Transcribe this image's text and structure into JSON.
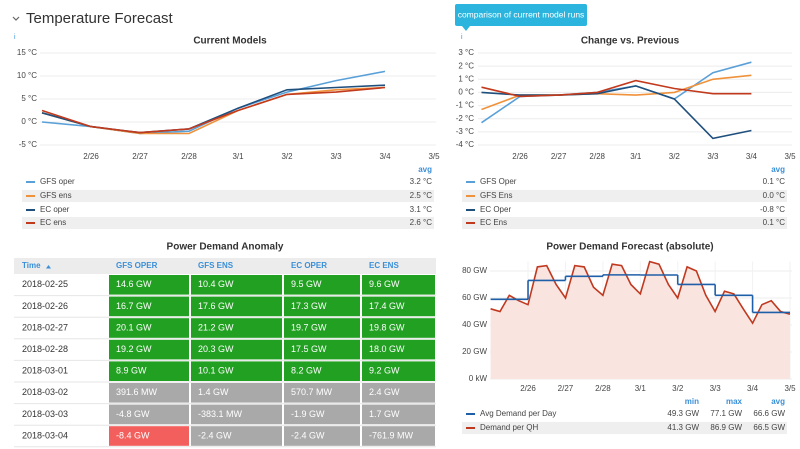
{
  "header": {
    "title": "Temperature Forecast",
    "tooltip": "comparison of current model runs"
  },
  "chart_data": [
    {
      "type": "line",
      "title": "Current Models",
      "categories": [
        null,
        "2/26",
        "2/27",
        "2/28",
        "3/1",
        "3/2",
        "3/3",
        "3/4",
        "3/5"
      ],
      "series": [
        {
          "name": "GFS oper",
          "color": "#5aa0d8",
          "values": [
            0,
            -1,
            -2.5,
            -2,
            3,
            6.5,
            9,
            11,
            null
          ],
          "legend_values": [
            "3.2 °C"
          ]
        },
        {
          "name": "GFS ens",
          "color": "#f0923b",
          "values": [
            2,
            -1,
            -2.5,
            -2.5,
            2.5,
            6,
            7,
            7.5,
            null
          ],
          "legend_values": [
            "2.5 °C"
          ]
        },
        {
          "name": "EC oper",
          "color": "#1f4f7d",
          "values": [
            2,
            -1,
            -2.3,
            -1.5,
            3,
            7,
            7.5,
            8,
            null
          ],
          "legend_values": [
            "3.1 °C"
          ]
        },
        {
          "name": "EC ens",
          "color": "#c23a1e",
          "values": [
            2.5,
            -1,
            -2.3,
            -1.5,
            2.5,
            6,
            6.5,
            7.5,
            null
          ],
          "legend_values": [
            "2.6 °C"
          ]
        }
      ],
      "legend_columns": [
        "avg"
      ],
      "ylim": [
        -5,
        15
      ],
      "yticks": [
        {
          "value": 15,
          "label": "15 °C"
        },
        {
          "value": 10,
          "label": "10 °C"
        },
        {
          "value": 5,
          "label": "5 °C"
        },
        {
          "value": 0,
          "label": "0 °C"
        },
        {
          "value": -5,
          "label": "-5 °C"
        }
      ],
      "grid": true
    },
    {
      "type": "line",
      "title": "Change vs. Previous",
      "categories": [
        null,
        "2/26",
        "2/27",
        "2/28",
        "3/1",
        "3/2",
        "3/3",
        "3/4",
        "3/5"
      ],
      "series": [
        {
          "name": "GFS Oper",
          "color": "#5aa0d8",
          "values": [
            -2.3,
            -0.3,
            -0.2,
            0,
            0.5,
            -0.5,
            1.5,
            2.3,
            null
          ],
          "legend_values": [
            "0.1 °C"
          ]
        },
        {
          "name": "GFS Ens",
          "color": "#f0923b",
          "values": [
            -1.3,
            -0.2,
            -0.2,
            -0.1,
            -0.2,
            0,
            1,
            1.3,
            null
          ],
          "legend_values": [
            "0.0 °C"
          ]
        },
        {
          "name": "EC Oper",
          "color": "#1f4f7d",
          "values": [
            0,
            -0.2,
            -0.2,
            -0.1,
            0.5,
            -0.5,
            -3.5,
            -2.9,
            null
          ],
          "legend_values": [
            "-0.8 °C"
          ]
        },
        {
          "name": "EC Ens",
          "color": "#c23a1e",
          "values": [
            0.4,
            -0.3,
            -0.2,
            0,
            0.9,
            0.3,
            -0.1,
            -0.1,
            null
          ],
          "legend_values": [
            "0.1 °C"
          ]
        }
      ],
      "legend_columns": [
        "avg"
      ],
      "ylim": [
        -4,
        3
      ],
      "yticks": [
        {
          "value": 3,
          "label": "3 °C"
        },
        {
          "value": 2,
          "label": "2 °C"
        },
        {
          "value": 1,
          "label": "1 °C"
        },
        {
          "value": 0,
          "label": "0 °C"
        },
        {
          "value": -1,
          "label": "-1 °C"
        },
        {
          "value": -2,
          "label": "-2 °C"
        },
        {
          "value": -3,
          "label": "-3 °C"
        },
        {
          "value": -4,
          "label": "-4 °C"
        }
      ],
      "grid": true
    },
    {
      "type": "line",
      "title": "Power Demand Forecast (absolute)",
      "series": [
        {
          "name": "Avg Demand per Day",
          "color": "#1f5fa8",
          "step": true,
          "x": [
            0,
            1,
            2,
            3,
            4,
            5,
            6,
            7
          ],
          "values": [
            59,
            73,
            76,
            77.1,
            77,
            70,
            62,
            49.3
          ],
          "legend_values": [
            "49.3 GW",
            "77.1 GW",
            "66.6 GW"
          ]
        },
        {
          "name": "Demand per QH",
          "color": "#c0391f",
          "fill": "#f9e4e0",
          "x": [
            0,
            0.25,
            0.5,
            0.75,
            1,
            1.25,
            1.5,
            1.75,
            2,
            2.25,
            2.5,
            2.75,
            3,
            3.25,
            3.5,
            3.75,
            4,
            4.25,
            4.5,
            4.75,
            5,
            5.25,
            5.5,
            5.75,
            6,
            6.25,
            6.5,
            6.75,
            7,
            7.25,
            7.5,
            7.75,
            8
          ],
          "values": [
            52,
            50,
            62,
            58,
            55,
            83,
            84,
            70,
            60,
            84,
            83,
            68,
            62,
            85,
            84,
            70,
            63,
            86.9,
            85,
            70,
            60,
            83,
            80,
            62,
            50,
            65,
            63,
            52,
            41.3,
            55,
            58,
            50,
            48
          ],
          "legend_values": [
            "41.3 GW",
            "86.9 GW",
            "66.5 GW"
          ]
        }
      ],
      "legend_columns": [
        "min",
        "max",
        "avg"
      ],
      "xlim": [
        0,
        8
      ],
      "xticks": [
        {
          "value": 1,
          "label": "2/26"
        },
        {
          "value": 2,
          "label": "2/27"
        },
        {
          "value": 3,
          "label": "2/28"
        },
        {
          "value": 4,
          "label": "3/1"
        },
        {
          "value": 5,
          "label": "3/2"
        },
        {
          "value": 6,
          "label": "3/3"
        },
        {
          "value": 7,
          "label": "3/4"
        },
        {
          "value": 8,
          "label": "3/5"
        }
      ],
      "ylim": [
        0,
        87
      ],
      "yticks": [
        {
          "value": 0,
          "label": "0 kW"
        },
        {
          "value": 20,
          "label": "20 GW"
        },
        {
          "value": 40,
          "label": "40 GW"
        },
        {
          "value": 60,
          "label": "60 GW"
        },
        {
          "value": 80,
          "label": "80 GW"
        }
      ],
      "grid": true
    }
  ],
  "table": {
    "title": "Power Demand Anomaly",
    "columns": [
      "Time",
      "GFS OPER",
      "GFS ENS",
      "EC OPER",
      "EC ENS"
    ],
    "rows": [
      [
        "2018-02-25",
        "14.6 GW",
        "10.4 GW",
        "9.5 GW",
        "9.6 GW"
      ],
      [
        "2018-02-26",
        "16.7 GW",
        "17.6 GW",
        "17.3 GW",
        "17.4 GW"
      ],
      [
        "2018-02-27",
        "20.1 GW",
        "21.2 GW",
        "19.7 GW",
        "19.8 GW"
      ],
      [
        "2018-02-28",
        "19.2 GW",
        "20.3 GW",
        "17.5 GW",
        "18.0 GW"
      ],
      [
        "2018-03-01",
        "8.9 GW",
        "10.1 GW",
        "8.2 GW",
        "9.2 GW"
      ],
      [
        "2018-03-02",
        "391.6 MW",
        "1.4 GW",
        "570.7 MW",
        "2.4 GW"
      ],
      [
        "2018-03-03",
        "-4.8 GW",
        "-383.1 MW",
        "-1.9 GW",
        "1.7 GW"
      ],
      [
        "2018-03-04",
        "-8.4 GW",
        "-2.4 GW",
        "-2.4 GW",
        "-761.9 MW"
      ]
    ],
    "cell_colors": [
      [
        "#22a022",
        "#22a022",
        "#22a022",
        "#22a022"
      ],
      [
        "#22a022",
        "#22a022",
        "#22a022",
        "#22a022"
      ],
      [
        "#22a022",
        "#22a022",
        "#22a022",
        "#22a022"
      ],
      [
        "#22a022",
        "#22a022",
        "#22a022",
        "#22a022"
      ],
      [
        "#22a022",
        "#22a022",
        "#22a022",
        "#22a022"
      ],
      [
        "#a9a9a9",
        "#a9a9a9",
        "#a9a9a9",
        "#a9a9a9"
      ],
      [
        "#a9a9a9",
        "#a9a9a9",
        "#a9a9a9",
        "#a9a9a9"
      ],
      [
        "#f25f5c",
        "#a9a9a9",
        "#a9a9a9",
        "#a9a9a9"
      ]
    ]
  }
}
